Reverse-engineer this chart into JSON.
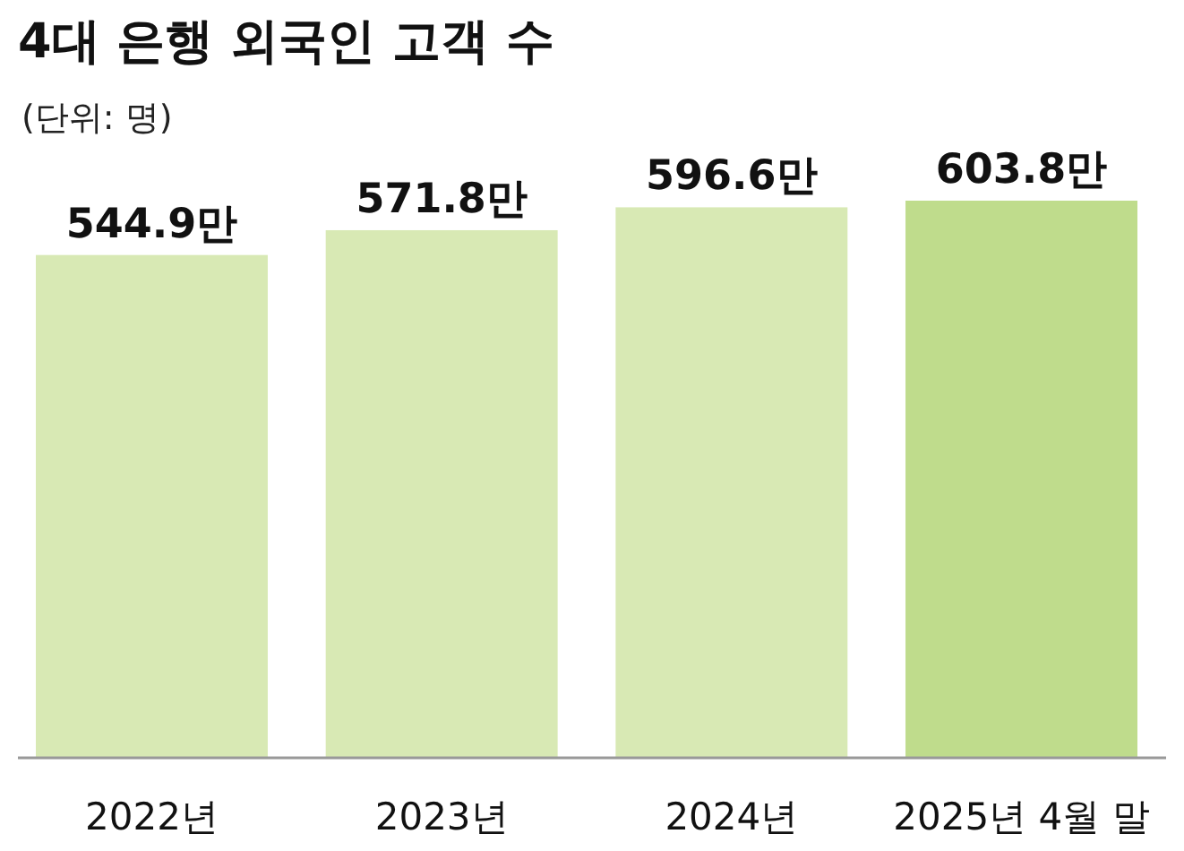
{
  "chart_data": {
    "type": "bar",
    "title": "4대 은행 외국인 고객 수",
    "subtitle": "(단위: 명)",
    "categories": [
      "2022년",
      "2023년",
      "2024년",
      "2025년 4월 말"
    ],
    "values": [
      544.9,
      571.8,
      596.6,
      603.8
    ],
    "colors": [
      "#d8e9b4",
      "#d8e9b4",
      "#d8e9b4",
      "#bfdc8c"
    ],
    "value_labels": [
      "544.9만",
      "571.8만",
      "596.6만",
      "603.8만"
    ],
    "tick_labels": "x"
  }
}
